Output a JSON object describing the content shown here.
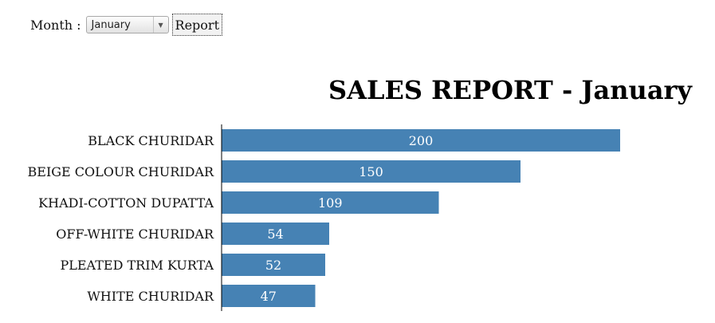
{
  "controls": {
    "month_label": "Month :",
    "month_selected": "January",
    "report_button_label": "Report"
  },
  "chart_data": {
    "type": "bar",
    "orientation": "horizontal",
    "title": "SALES REPORT - January",
    "categories": [
      "BLACK CHURIDAR",
      "BEIGE COLOUR CHURIDAR",
      "KHADI-COTTON DUPATTA",
      "OFF-WHITE CHURIDAR",
      "PLEATED TRIM KURTA",
      "WHITE CHURIDAR"
    ],
    "values": [
      200,
      150,
      109,
      54,
      52,
      47
    ],
    "value_labels": [
      "200",
      "150",
      "109",
      "54",
      "52",
      "47"
    ],
    "xlim": [
      0,
      200
    ],
    "bar_color": "#4682b4",
    "label_color": "#ffffff",
    "grid": false,
    "legend": "none"
  }
}
